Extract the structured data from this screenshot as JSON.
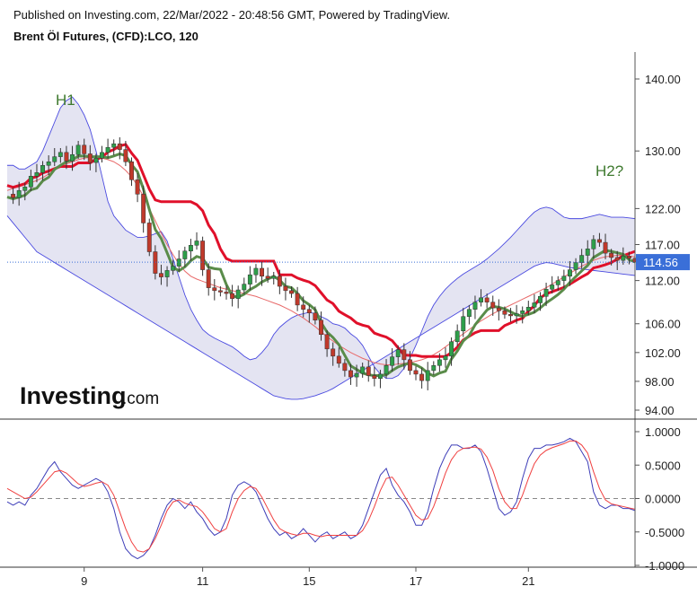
{
  "header": {
    "line1": "Published on Investing.com, 22/Mar/2022 - 20:48:56 GMT, Powered by TradingView.",
    "title": "Brent Öl Futures, (CFD):LCO, 120"
  },
  "logo": {
    "brand": "Investing",
    "suffix": ".com"
  },
  "colors": {
    "up": "#2e9e4a",
    "down": "#c0392b",
    "bands_fill": "#e4e4f2",
    "bands_line": "#4a4ae0",
    "red_line": "#e0102a",
    "green_line": "#5a8c4a",
    "ma_line": "#e86a6a",
    "osc_k": "#3d3db8",
    "osc_d": "#f04040",
    "last_price_bg": "#3a6fd8"
  },
  "chart_data": [
    {
      "type": "candlestick",
      "symbol": "Brent Öl Futures, (CFD):LCO, 120",
      "y_ticks": [
        "140.00",
        "130.00",
        "122.00",
        "117.00",
        "112.00",
        "106.00",
        "102.00",
        "98.00",
        "94.00"
      ],
      "y_tick_values": [
        140,
        130,
        122,
        117,
        112,
        106,
        102,
        98,
        94
      ],
      "x_ticks": [
        "9",
        "11",
        "15",
        "17",
        "21"
      ],
      "last_price": "114.56",
      "annotations": [
        "H1",
        "H2?"
      ],
      "indicators": [
        "Bollinger Bands",
        "Moving Average",
        "Ichimoku lines"
      ],
      "x_start": 0,
      "x_end": 106,
      "x_tick_positions": [
        13,
        33,
        51,
        69,
        88
      ],
      "close": [
        124.0,
        123.5,
        124.5,
        125.0,
        126.5,
        127.0,
        128.0,
        128.5,
        129.2,
        129.8,
        128.6,
        129.5,
        130.8,
        129.6,
        128.4,
        129.0,
        129.8,
        130.5,
        131.0,
        130.2,
        128.5,
        126.0,
        124.0,
        120.0,
        116.0,
        113.0,
        112.5,
        113.4,
        114.0,
        115.0,
        116.1,
        116.9,
        117.5,
        113.5,
        111.0,
        110.6,
        110.4,
        110.2,
        109.5,
        110.7,
        111.5,
        112.8,
        113.7,
        112.6,
        112.3,
        112.6,
        111.2,
        110.6,
        110.2,
        108.6,
        108.0,
        107.5,
        106.5,
        104.5,
        102.5,
        101.5,
        100.5,
        99.5,
        98.6,
        99.1,
        100.0,
        98.8,
        98.4,
        99.0,
        100.2,
        101.4,
        102.4,
        101.0,
        99.5,
        99.0,
        98.1,
        99.5,
        100.2,
        101.0,
        101.5,
        103.5,
        105.0,
        107.0,
        108.0,
        109.0,
        109.6,
        109.0,
        108.2,
        107.8,
        107.3,
        107.1,
        107.4,
        107.8,
        108.3,
        108.9,
        109.8,
        110.8,
        111.4,
        112.0,
        112.6,
        113.5,
        114.5,
        115.5,
        116.4,
        117.7,
        117.3,
        115.8,
        115.2,
        114.8,
        115.4,
        115.1,
        114.56
      ],
      "bollinger_upper": [
        128.0,
        128.0,
        127.5,
        127.5,
        128.0,
        128.5,
        130.0,
        132.0,
        134.0,
        136.0,
        137.0,
        137.5,
        136.5,
        135.0,
        133.0,
        130.0,
        126.5,
        123.0,
        121.0,
        120.0,
        119.0,
        118.5,
        118.0,
        118.0,
        118.2,
        118.5,
        118.8,
        117.5,
        115.0,
        112.5,
        110.0,
        108.0,
        106.5,
        105.2,
        104.5,
        104.0,
        103.6,
        103.2,
        102.8,
        102.2,
        101.5,
        101.0,
        101.2,
        102.0,
        103.0,
        104.5,
        105.5,
        106.2,
        106.8,
        107.2,
        107.4,
        107.6,
        107.4,
        107.0,
        106.6,
        106.0,
        105.8,
        105.4,
        104.6,
        104.0,
        103.0,
        101.5,
        100.0,
        99.0,
        98.4,
        98.4,
        98.8,
        99.8,
        101.2,
        103.0,
        105.0,
        107.0,
        108.6,
        109.8,
        110.8,
        111.6,
        112.3,
        112.9,
        113.4,
        113.9,
        114.4,
        115.0,
        115.7,
        116.4,
        117.2,
        118.0,
        118.9,
        119.8,
        120.7,
        121.5,
        122.0,
        122.2,
        122.0,
        121.4,
        120.8,
        120.6,
        120.6,
        120.6,
        120.8,
        121.0,
        121.2,
        121.0,
        120.8,
        120.8,
        120.8,
        120.7,
        120.6
      ],
      "bollinger_lower": [
        121.0,
        120.0,
        119.0,
        118.0,
        117.0,
        116.0,
        115.5,
        115.0,
        114.5,
        114.0,
        113.5,
        113.0,
        112.5,
        112.0,
        111.5,
        111.0,
        110.5,
        110.0,
        109.5,
        109.0,
        108.5,
        108.0,
        107.5,
        107.0,
        106.5,
        106.0,
        105.5,
        105.0,
        104.5,
        104.0,
        103.5,
        103.0,
        102.5,
        102.0,
        101.5,
        101.0,
        100.5,
        100.0,
        99.5,
        99.0,
        98.5,
        98.0,
        97.5,
        97.0,
        96.5,
        96.0,
        95.8,
        95.6,
        95.5,
        95.5,
        95.6,
        95.8,
        96.0,
        96.3,
        96.6,
        97.0,
        97.5,
        98.0,
        98.5,
        99.0,
        99.5,
        100.0,
        100.5,
        101.0,
        101.5,
        102.0,
        102.5,
        103.0,
        103.5,
        104.0,
        104.5,
        105.0,
        105.5,
        106.0,
        106.5,
        107.0,
        107.5,
        108.0,
        108.5,
        109.0,
        109.5,
        110.0,
        110.5,
        111.0,
        111.5,
        112.0,
        112.5,
        113.0,
        113.5,
        114.0,
        114.3,
        114.5,
        114.4,
        114.2,
        114.0,
        113.8,
        113.7,
        113.6,
        113.5,
        113.4,
        113.3,
        113.2,
        113.1,
        113.0,
        112.9,
        112.8,
        112.7
      ],
      "moving_average": [
        124.5,
        124.8,
        125.0,
        125.3,
        125.6,
        125.9,
        126.3,
        126.8,
        127.3,
        127.8,
        128.2,
        128.5,
        128.8,
        129.0,
        129.1,
        129.1,
        129.0,
        128.8,
        128.5,
        128.0,
        127.3,
        126.4,
        125.2,
        123.7,
        122.0,
        120.3,
        118.6,
        117.0,
        115.6,
        114.3,
        113.3,
        112.6,
        112.2,
        111.9,
        111.6,
        111.3,
        111.0,
        110.8,
        110.6,
        110.4,
        110.2,
        110.0,
        109.8,
        109.5,
        109.2,
        108.9,
        108.6,
        108.2,
        107.8,
        107.3,
        106.8,
        106.2,
        105.6,
        104.9,
        104.2,
        103.6,
        103.0,
        102.5,
        102.0,
        101.6,
        101.2,
        100.9,
        100.6,
        100.4,
        100.3,
        100.3,
        100.4,
        100.5,
        100.6,
        100.8,
        101.0,
        101.3,
        101.7,
        102.2,
        102.8,
        103.4,
        104.0,
        104.6,
        105.2,
        105.8,
        106.4,
        106.9,
        107.4,
        107.8,
        108.2,
        108.6,
        109.0,
        109.4,
        109.8,
        110.2,
        110.6,
        111.0,
        111.5,
        112.0,
        112.5,
        113.0,
        113.5,
        114.0,
        114.4,
        114.8,
        115.1,
        115.3,
        115.4,
        115.5,
        115.5,
        115.4,
        115.3
      ],
      "red_line": [
        null,
        null,
        null,
        null,
        null,
        null,
        null,
        null,
        null,
        null,
        null,
        null,
        null,
        null,
        null,
        null,
        null,
        null,
        null,
        null,
        null,
        null,
        null,
        null,
        null,
        null,
        null,
        null,
        null,
        null,
        null,
        null,
        null,
        null,
        null,
        null,
        null,
        null,
        null,
        null,
        null,
        null,
        null,
        null,
        null,
        null,
        null,
        null,
        null,
        null,
        null,
        null,
        null,
        null,
        null,
        null,
        null,
        null,
        null,
        null,
        null,
        null,
        null,
        null,
        null,
        null,
        null,
        null,
        null,
        null,
        null,
        null,
        null,
        null,
        null,
        null,
        null,
        null,
        null,
        null,
        null,
        null,
        null,
        null,
        null,
        null,
        null,
        null,
        null,
        null,
        null,
        null,
        null,
        null,
        null,
        null,
        null,
        null,
        null,
        null,
        null,
        null,
        null,
        null,
        null,
        null,
        null
      ],
      "green_line": [
        null,
        null,
        null,
        null,
        null,
        null,
        null,
        null,
        null,
        null,
        null,
        null,
        null,
        null,
        null,
        null,
        null,
        null,
        null,
        null,
        null,
        null,
        null,
        null,
        null,
        null,
        null,
        null,
        null,
        null,
        null,
        null,
        null,
        null,
        null,
        null,
        null,
        null,
        null,
        null,
        null,
        null,
        null,
        null,
        null,
        null,
        null,
        null,
        null,
        null,
        null,
        null,
        null,
        null,
        null,
        null,
        null,
        null,
        null,
        null,
        null,
        null,
        null,
        null,
        null,
        null,
        null,
        null,
        null,
        null,
        null,
        null,
        null,
        null,
        null,
        null,
        null,
        null,
        null,
        null,
        null,
        null,
        null,
        null,
        null,
        null,
        null,
        null,
        null,
        null,
        null,
        null,
        null,
        null,
        null,
        null,
        null,
        null,
        null,
        null,
        null,
        null,
        null,
        null,
        null,
        null,
        null
      ]
    },
    {
      "type": "line",
      "name": "oscillator",
      "y_ticks": [
        "1.0000",
        "0.5000",
        "0.0000",
        "-0.5000",
        "-1.0000"
      ],
      "y_tick_values": [
        1.0,
        0.5,
        0.0,
        -0.5,
        -1.0
      ],
      "reference_level": 0.0,
      "series": [
        {
          "key": "k",
          "values": [
            -0.05,
            -0.1,
            -0.05,
            -0.1,
            0.05,
            0.15,
            0.3,
            0.45,
            0.55,
            0.4,
            0.3,
            0.2,
            0.15,
            0.2,
            0.25,
            0.3,
            0.25,
            0.1,
            -0.15,
            -0.5,
            -0.75,
            -0.85,
            -0.9,
            -0.85,
            -0.75,
            -0.55,
            -0.3,
            -0.1,
            0.0,
            -0.05,
            -0.15,
            -0.05,
            -0.2,
            -0.3,
            -0.45,
            -0.55,
            -0.5,
            -0.3,
            0.05,
            0.2,
            0.25,
            0.2,
            0.1,
            -0.1,
            -0.3,
            -0.45,
            -0.55,
            -0.5,
            -0.6,
            -0.55,
            -0.45,
            -0.55,
            -0.65,
            -0.55,
            -0.5,
            -0.6,
            -0.55,
            -0.5,
            -0.6,
            -0.55,
            -0.4,
            -0.15,
            0.1,
            0.35,
            0.45,
            0.2,
            0.05,
            -0.05,
            -0.2,
            -0.4,
            -0.4,
            -0.2,
            0.15,
            0.45,
            0.65,
            0.8,
            0.8,
            0.75,
            0.75,
            0.8,
            0.7,
            0.45,
            0.15,
            -0.15,
            -0.25,
            -0.2,
            -0.05,
            0.3,
            0.6,
            0.75,
            0.75,
            0.8,
            0.8,
            0.82,
            0.85,
            0.9,
            0.85,
            0.7,
            0.55,
            0.1,
            -0.1,
            -0.15,
            -0.1,
            -0.1,
            -0.15,
            -0.15,
            -0.18
          ]
        },
        {
          "key": "d",
          "values": [
            0.15,
            0.1,
            0.05,
            0.0,
            0.02,
            0.1,
            0.2,
            0.3,
            0.4,
            0.42,
            0.38,
            0.3,
            0.22,
            0.18,
            0.2,
            0.23,
            0.25,
            0.2,
            0.05,
            -0.2,
            -0.45,
            -0.65,
            -0.78,
            -0.8,
            -0.75,
            -0.6,
            -0.4,
            -0.18,
            -0.05,
            -0.02,
            -0.07,
            -0.1,
            -0.12,
            -0.2,
            -0.32,
            -0.45,
            -0.5,
            -0.45,
            -0.2,
            0.0,
            0.12,
            0.18,
            0.15,
            0.02,
            -0.15,
            -0.32,
            -0.45,
            -0.5,
            -0.53,
            -0.55,
            -0.52,
            -0.52,
            -0.55,
            -0.57,
            -0.55,
            -0.55,
            -0.55,
            -0.55,
            -0.55,
            -0.55,
            -0.48,
            -0.33,
            -0.12,
            0.12,
            0.3,
            0.32,
            0.2,
            0.05,
            -0.1,
            -0.25,
            -0.32,
            -0.3,
            -0.12,
            0.12,
            0.38,
            0.58,
            0.7,
            0.75,
            0.76,
            0.77,
            0.74,
            0.62,
            0.42,
            0.15,
            -0.05,
            -0.15,
            -0.15,
            0.05,
            0.3,
            0.52,
            0.65,
            0.72,
            0.76,
            0.79,
            0.82,
            0.86,
            0.86,
            0.8,
            0.68,
            0.4,
            0.15,
            -0.02,
            -0.08,
            -0.1,
            -0.12,
            -0.14,
            -0.16
          ]
        }
      ]
    }
  ]
}
